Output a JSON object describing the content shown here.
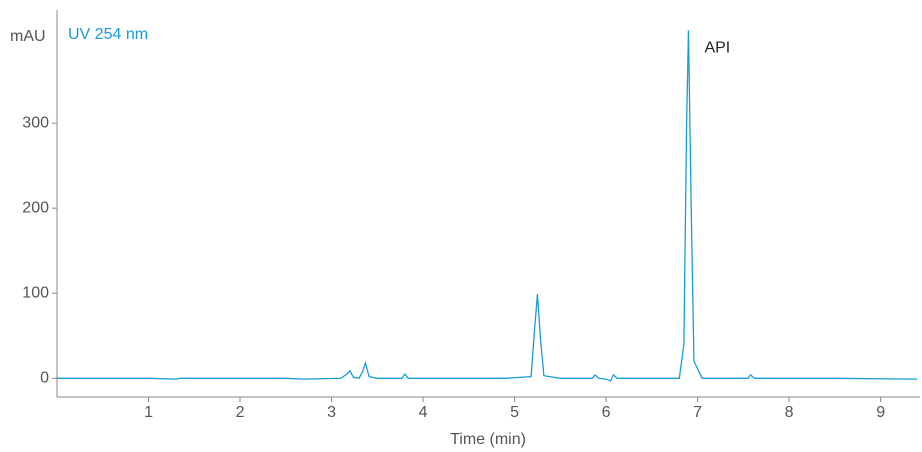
{
  "chart_data": {
    "type": "line",
    "y_label": "mAU",
    "x_label": "Time (min)",
    "annotations": [
      "API"
    ],
    "x": [
      0,
      0.5,
      1,
      1.3,
      1.35,
      2.5,
      2.7,
      3.1,
      3.17,
      3.2,
      3.24,
      3.3,
      3.34,
      3.37,
      3.41,
      3.5,
      3.77,
      3.8,
      3.84,
      4.9,
      5.18,
      5.22,
      5.25,
      5.28,
      5.32,
      5.5,
      5.85,
      5.88,
      5.92,
      6.0,
      6.05,
      6.08,
      6.12,
      6.8,
      6.85,
      6.88,
      6.9,
      6.93,
      6.96,
      7.05,
      7.55,
      7.58,
      7.62,
      8.5,
      9.4
    ],
    "series": [
      {
        "name": "UV 254 nm",
        "color": "#1a9bd7",
        "values": [
          0,
          0,
          0,
          -1,
          0,
          0,
          -1,
          0,
          5,
          9,
          1,
          0,
          8,
          18,
          2,
          0,
          0,
          5,
          0,
          0,
          2,
          60,
          99,
          50,
          3,
          0,
          0,
          4,
          0,
          -1,
          -3,
          4,
          0,
          0,
          40,
          300,
          409,
          200,
          20,
          0,
          0,
          4,
          0,
          0,
          -1
        ]
      }
    ],
    "xlim": [
      0,
      9.43
    ],
    "ylim": [
      -22,
      433
    ],
    "xticks": [
      1,
      2,
      3,
      4,
      5,
      6,
      7,
      8,
      9
    ],
    "yticks": [
      0,
      100,
      200,
      300
    ],
    "grid": false
  }
}
